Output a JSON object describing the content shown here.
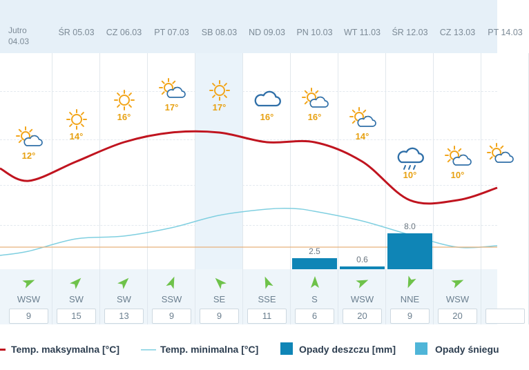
{
  "days": [
    {
      "date": "Jutro 04.03",
      "temp": "12°",
      "icon": "partly-cloudy-icon",
      "wind_dir": "WSW",
      "wind_speed": "9",
      "rain": null
    },
    {
      "date": "ŚR 05.03",
      "temp": "14°",
      "icon": "sunny-icon",
      "wind_dir": "SW",
      "wind_speed": "15",
      "rain": null
    },
    {
      "date": "CZ 06.03",
      "temp": "16°",
      "icon": "sunny-icon",
      "wind_dir": "SW",
      "wind_speed": "13",
      "rain": null
    },
    {
      "date": "PT 07.03",
      "temp": "17°",
      "icon": "partly-cloudy-icon",
      "wind_dir": "SSW",
      "wind_speed": "9",
      "rain": null
    },
    {
      "date": "SB 08.03",
      "temp": "17°",
      "icon": "sunny-icon",
      "wind_dir": "SE",
      "wind_speed": "9",
      "rain": null
    },
    {
      "date": "ND 09.03",
      "temp": "16°",
      "icon": "cloud-icon",
      "wind_dir": "SSE",
      "wind_speed": "11",
      "rain": null
    },
    {
      "date": "PN 10.03",
      "temp": "16°",
      "icon": "partly-cloudy-icon",
      "wind_dir": "S",
      "wind_speed": "6",
      "rain": "2.5"
    },
    {
      "date": "WT 11.03",
      "temp": "14°",
      "icon": "partly-cloudy-icon",
      "wind_dir": "WSW",
      "wind_speed": "20",
      "rain": "0.6"
    },
    {
      "date": "ŚR 12.03",
      "temp": "10°",
      "icon": "rain-cloud-icon",
      "wind_dir": "NNE",
      "wind_speed": "9",
      "rain": "8.0"
    },
    {
      "date": "CZ 13.03",
      "temp": "10°",
      "icon": "partly-cloudy-icon",
      "wind_dir": "WSW",
      "wind_speed": "20",
      "rain": null
    },
    {
      "date": "PT 14.03",
      "temp": "",
      "icon": "partly-cloudy-icon",
      "wind_dir": "",
      "wind_speed": "",
      "rain": null
    }
  ],
  "legend": {
    "max_label": "Temp. maksymalna [°C]",
    "min_label": "Temp. minimalna [°C]",
    "rain_label": "Opady deszczu [mm]",
    "snow_label": "Opady śniegu"
  },
  "colors": {
    "max_line": "#c0141f",
    "min_line": "#7fcfe0",
    "rain_bar": "#0f85b6",
    "snow_bar": "#4fb5d8",
    "temp_text": "#e7a112",
    "sun": "#f2a51a",
    "cloud": "#2f6fa8"
  },
  "chart_data": {
    "type": "line",
    "categories": [
      "04.03",
      "05.03",
      "06.03",
      "07.03",
      "08.03",
      "09.03",
      "10.03",
      "11.03",
      "12.03",
      "13.03"
    ],
    "series": [
      {
        "name": "Temp. maksymalna [°C]",
        "values": [
          12,
          14,
          16,
          17,
          17,
          16,
          16,
          14,
          10,
          10
        ]
      },
      {
        "name": "Opady deszczu [mm]",
        "values": [
          0,
          0,
          0,
          0,
          0,
          0,
          2.5,
          0.6,
          8.0,
          0
        ]
      }
    ]
  }
}
